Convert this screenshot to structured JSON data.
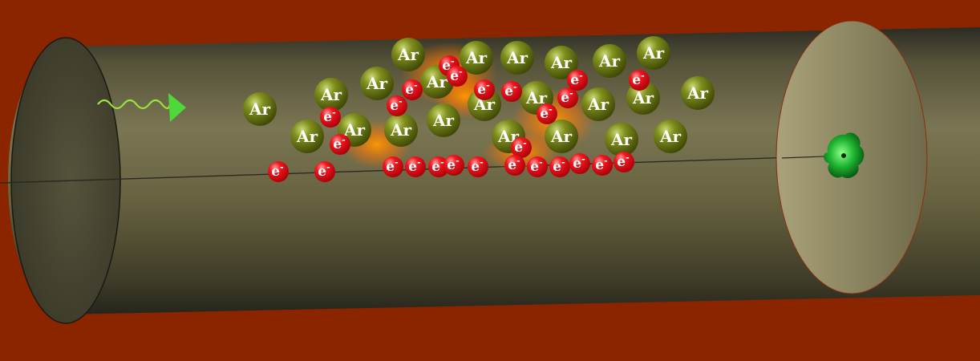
{
  "colors": {
    "background": "#8a2500",
    "tube": "#5e5a38",
    "argon": "#6f7d14",
    "electron": "#e8141c",
    "glow": "#ff8a00",
    "photon": "#7ee040",
    "detector": "#1ea82e"
  },
  "labels": {
    "argon": "Ar",
    "electron": "e",
    "electron_charge": "-"
  },
  "icons": {
    "photon": "photon-wave-arrow-icon",
    "detector": "detector-spark-icon"
  }
}
